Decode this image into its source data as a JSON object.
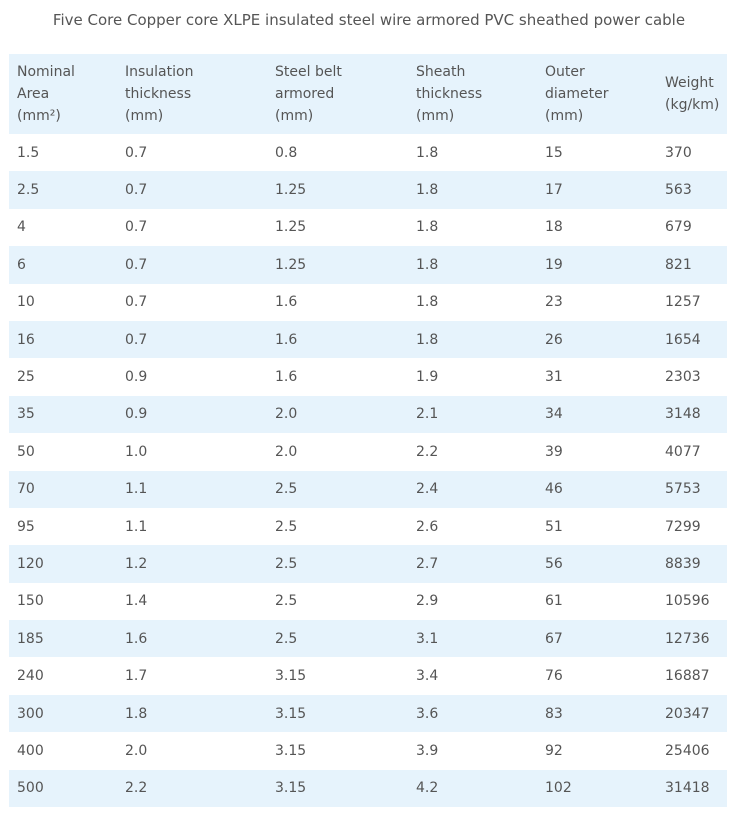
{
  "title": "Five Core Copper core XLPE insulated steel wire armored PVC sheathed power cable",
  "table": {
    "headers": [
      [
        "Nominal",
        "Area",
        "(mm²)"
      ],
      [
        "Insulation",
        "thickness",
        "(mm)"
      ],
      [
        "Steel belt",
        "armored",
        "(mm)"
      ],
      [
        "Sheath",
        "thickness",
        "(mm)"
      ],
      [
        "Outer",
        "diameter",
        "(mm)"
      ],
      [
        "Weight",
        "(kg/km)"
      ]
    ],
    "rows": [
      [
        "1.5",
        "0.7",
        "0.8",
        "1.8",
        "15",
        "370"
      ],
      [
        "2.5",
        "0.7",
        "1.25",
        "1.8",
        "17",
        "563"
      ],
      [
        "4",
        "0.7",
        "1.25",
        "1.8",
        "18",
        "679"
      ],
      [
        "6",
        "0.7",
        "1.25",
        "1.8",
        "19",
        "821"
      ],
      [
        "10",
        "0.7",
        "1.6",
        "1.8",
        "23",
        "1257"
      ],
      [
        "16",
        "0.7",
        "1.6",
        "1.8",
        "26",
        "1654"
      ],
      [
        "25",
        "0.9",
        "1.6",
        "1.9",
        "31",
        "2303"
      ],
      [
        "35",
        "0.9",
        "2.0",
        "2.1",
        "34",
        "3148"
      ],
      [
        "50",
        "1.0",
        "2.0",
        "2.2",
        "39",
        "4077"
      ],
      [
        "70",
        "1.1",
        "2.5",
        "2.4",
        "46",
        "5753"
      ],
      [
        "95",
        "1.1",
        "2.5",
        "2.6",
        "51",
        "7299"
      ],
      [
        "120",
        "1.2",
        "2.5",
        "2.7",
        "56",
        "8839"
      ],
      [
        "150",
        "1.4",
        "2.5",
        "2.9",
        "61",
        "10596"
      ],
      [
        "185",
        "1.6",
        "2.5",
        "3.1",
        "67",
        "12736"
      ],
      [
        "240",
        "1.7",
        "3.15",
        "3.4",
        "76",
        "16887"
      ],
      [
        "300",
        "1.8",
        "3.15",
        "3.6",
        "83",
        "20347"
      ],
      [
        "400",
        "2.0",
        "3.15",
        "3.9",
        "92",
        "25406"
      ],
      [
        "500",
        "2.2",
        "3.15",
        "4.2",
        "102",
        "31418"
      ]
    ]
  },
  "colors": {
    "header_bg": "#e6f3fc",
    "stripe_bg": "#e6f3fc",
    "text": "#555555"
  }
}
